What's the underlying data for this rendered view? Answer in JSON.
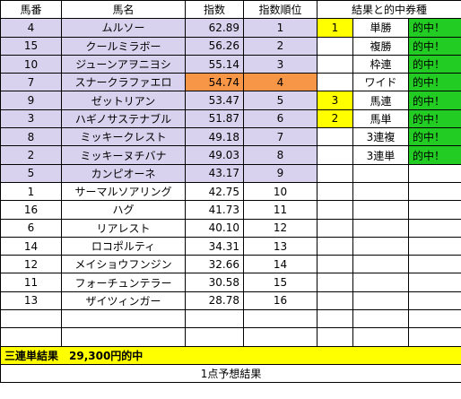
{
  "headers": [
    "馬番",
    "馬名",
    "指数",
    "指数順位",
    "結果と的中券種"
  ],
  "rows": [
    {
      "no": "4",
      "name": "ムルソー",
      "index": "62.89",
      "rank": "1",
      "res": "1",
      "bet": "単勝",
      "hit": "的中！"
    },
    {
      "no": "15",
      "name": "クールミラボー",
      "index": "56.26",
      "rank": "2",
      "res": "",
      "bet": "複勝",
      "hit": "的中！"
    },
    {
      "no": "10",
      "name": "ジューンアヲニヨシ",
      "index": "55.14",
      "rank": "3",
      "res": "",
      "bet": "枠連",
      "hit": "的中！"
    },
    {
      "no": "7",
      "name": "スナークラファエロ",
      "index": "54.74",
      "rank": "4",
      "res": "",
      "bet": "ワイド",
      "hit": "的中！"
    },
    {
      "no": "9",
      "name": "ゼットリアン",
      "index": "53.47",
      "rank": "5",
      "res": "3",
      "bet": "馬連",
      "hit": "的中！"
    },
    {
      "no": "3",
      "name": "ハギノサステナブル",
      "index": "51.87",
      "rank": "6",
      "res": "2",
      "bet": "馬単",
      "hit": "的中！"
    },
    {
      "no": "8",
      "name": "ミッキークレスト",
      "index": "49.18",
      "rank": "7",
      "res": "",
      "bet": "3連複",
      "hit": "的中！"
    },
    {
      "no": "2",
      "name": "ミッキーヌチバナ",
      "index": "49.03",
      "rank": "8",
      "res": "",
      "bet": "3連単",
      "hit": "的中！"
    },
    {
      "no": "5",
      "name": "カンピオーネ",
      "index": "43.17",
      "rank": "9",
      "res": "",
      "bet": "",
      "hit": ""
    },
    {
      "no": "1",
      "name": "サーマルソアリング",
      "index": "42.75",
      "rank": "10",
      "res": "",
      "bet": "",
      "hit": ""
    },
    {
      "no": "16",
      "name": "ハグ",
      "index": "41.73",
      "rank": "11",
      "res": "",
      "bet": "",
      "hit": ""
    },
    {
      "no": "6",
      "name": "リアレスト",
      "index": "40.10",
      "rank": "12",
      "res": "",
      "bet": "",
      "hit": ""
    },
    {
      "no": "14",
      "name": "ロコポルティ",
      "index": "34.31",
      "rank": "13",
      "res": "",
      "bet": "",
      "hit": ""
    },
    {
      "no": "12",
      "name": "メイショウフンジン",
      "index": "32.66",
      "rank": "14",
      "res": "",
      "bet": "",
      "hit": ""
    },
    {
      "no": "11",
      "name": "フォーチュンテラー",
      "index": "30.58",
      "rank": "15",
      "res": "",
      "bet": "",
      "hit": ""
    },
    {
      "no": "13",
      "name": "ザイツィンガー",
      "index": "28.78",
      "rank": "16",
      "res": "",
      "bet": "",
      "hit": ""
    }
  ],
  "banner": "三連単結果　29,300円的中",
  "footer": "1点予想結果",
  "colors": {
    "lavender": "#d9d2ee",
    "orange": "#f79646",
    "yellow": "#ffff00",
    "green": "#22cc22"
  }
}
